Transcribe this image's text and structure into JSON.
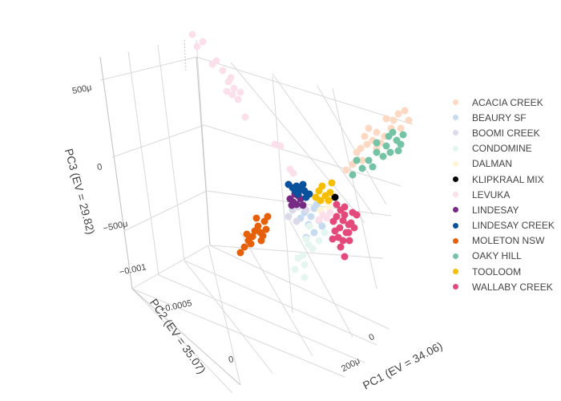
{
  "chart_data": {
    "type": "scatter",
    "xlabel": "PC1 (EV = 34.06)",
    "ylabel": "PC2 (EV = 35.07)",
    "zlabel": "PC3 (EV = 29.82)",
    "x_ticks": [
      "0",
      "200μ"
    ],
    "y_ticks": [
      "−0.001",
      "−0.0005",
      "0"
    ],
    "z_ticks": [
      "500μ",
      "0",
      "−500μ"
    ],
    "legend_position": "right",
    "series": [
      {
        "name": "ACACIA CREEK",
        "color": "#fdd9c3",
        "points": [
          [
            491,
            150
          ],
          [
            497,
            142
          ],
          [
            505,
            138
          ],
          [
            510,
            150
          ],
          [
            488,
            160
          ],
          [
            470,
            165
          ],
          [
            465,
            175
          ],
          [
            458,
            180
          ],
          [
            450,
            185
          ],
          [
            455,
            170
          ],
          [
            475,
            178
          ],
          [
            480,
            170
          ],
          [
            445,
            190
          ],
          [
            440,
            205
          ],
          [
            460,
            160
          ],
          [
            500,
            160
          ],
          [
            482,
            148
          ],
          [
            470,
            185
          ],
          [
            452,
            200
          ],
          [
            432,
            212
          ]
        ]
      },
      {
        "name": "BEAURY SF",
        "color": "#c6dbef",
        "points": [
          [
            380,
            265
          ],
          [
            388,
            270
          ],
          [
            392,
            260
          ],
          [
            398,
            275
          ],
          [
            385,
            280
          ],
          [
            375,
            272
          ],
          [
            392,
            290
          ],
          [
            382,
            296
          ],
          [
            395,
            255
          ],
          [
            402,
            282
          ]
        ]
      },
      {
        "name": "BOOMI CREEK",
        "color": "#dadaeb",
        "points": [
          [
            372,
            258
          ],
          [
            378,
            250
          ],
          [
            365,
            262
          ],
          [
            382,
            262
          ],
          [
            360,
            270
          ],
          [
            370,
            276
          ]
        ]
      },
      {
        "name": "CONDOMINE",
        "color": "#e5f5f0",
        "points": [
          [
            385,
            305
          ],
          [
            378,
            318
          ],
          [
            380,
            330
          ],
          [
            372,
            322
          ],
          [
            368,
            336
          ],
          [
            380,
            346
          ],
          [
            390,
            310
          ],
          [
            398,
            300
          ],
          [
            405,
            290
          ],
          [
            386,
            282
          ],
          [
            382,
            298
          ]
        ]
      },
      {
        "name": "DALMAN",
        "color": "#fff5d6",
        "points": [
          [
            405,
            250
          ],
          [
            410,
            258
          ],
          [
            400,
            262
          ],
          [
            415,
            246
          ],
          [
            396,
            244
          ]
        ]
      },
      {
        "name": "KLIPKRAAL MIX",
        "color": "#000000",
        "points": [
          [
            418,
            246
          ]
        ]
      },
      {
        "name": "LEVUKA",
        "color": "#fbe0ec",
        "points": [
          [
            240,
            43
          ],
          [
            253,
            52
          ],
          [
            246,
            58
          ],
          [
            265,
            80
          ],
          [
            270,
            76
          ],
          [
            285,
            102
          ],
          [
            292,
            110
          ],
          [
            300,
            115
          ],
          [
            290,
            118
          ],
          [
            283,
            114
          ],
          [
            278,
            88
          ],
          [
            288,
            97
          ],
          [
            297,
            124
          ],
          [
            306,
            146
          ],
          [
            343,
            180
          ],
          [
            350,
            182
          ],
          [
            362,
            211
          ],
          [
            366,
            216
          ],
          [
            403,
            268
          ],
          [
            408,
            272
          ],
          [
            412,
            265
          ],
          [
            398,
            274
          ],
          [
            416,
            276
          ],
          [
            420,
            270
          ]
        ]
      },
      {
        "name": "LINDESAY",
        "color": "#762a83",
        "points": [
          [
            362,
            248
          ],
          [
            366,
            252
          ],
          [
            370,
            255
          ],
          [
            375,
            248
          ],
          [
            364,
            256
          ],
          [
            372,
            244
          ],
          [
            378,
            256
          ],
          [
            368,
            242
          ]
        ]
      },
      {
        "name": "LINDESAY CREEK",
        "color": "#08519c",
        "points": [
          [
            360,
            230
          ],
          [
            365,
            234
          ],
          [
            368,
            238
          ],
          [
            372,
            242
          ],
          [
            375,
            236
          ],
          [
            378,
            230
          ],
          [
            382,
            246
          ],
          [
            386,
            242
          ],
          [
            370,
            232
          ],
          [
            380,
            238
          ]
        ]
      },
      {
        "name": "MOLETON NSW",
        "color": "#e6600a",
        "points": [
          [
            300,
            315
          ],
          [
            305,
            308
          ],
          [
            310,
            300
          ],
          [
            315,
            295
          ],
          [
            318,
            288
          ],
          [
            322,
            282
          ],
          [
            325,
            290
          ],
          [
            328,
            294
          ],
          [
            332,
            286
          ],
          [
            330,
            276
          ],
          [
            320,
            272
          ],
          [
            308,
            292
          ],
          [
            313,
            304
          ],
          [
            326,
            300
          ],
          [
            334,
            270
          ]
        ]
      },
      {
        "name": "OAKY HILL",
        "color": "#74c3a5",
        "points": [
          [
            490,
            165
          ],
          [
            495,
            175
          ],
          [
            500,
            180
          ],
          [
            485,
            170
          ],
          [
            470,
            190
          ],
          [
            478,
            195
          ],
          [
            460,
            200
          ],
          [
            452,
            210
          ],
          [
            440,
            218
          ],
          [
            445,
            200
          ],
          [
            465,
            208
          ],
          [
            497,
            188
          ],
          [
            503,
            168
          ],
          [
            482,
            182
          ],
          [
            470,
            178
          ],
          [
            487,
            190
          ]
        ]
      },
      {
        "name": "TOOLOOM",
        "color": "#f5bf00",
        "points": [
          [
            398,
            238
          ],
          [
            402,
            232
          ],
          [
            406,
            244
          ],
          [
            412,
            240
          ],
          [
            400,
            250
          ],
          [
            410,
            250
          ],
          [
            394,
            246
          ],
          [
            414,
            228
          ]
        ]
      },
      {
        "name": "WALLABY CREEK",
        "color": "#e34a7b",
        "points": [
          [
            420,
            255
          ],
          [
            425,
            262
          ],
          [
            430,
            268
          ],
          [
            428,
            275
          ],
          [
            435,
            280
          ],
          [
            432,
            290
          ],
          [
            428,
            300
          ],
          [
            422,
            296
          ],
          [
            418,
            288
          ],
          [
            415,
            298
          ],
          [
            425,
            308
          ],
          [
            430,
            320
          ],
          [
            440,
            265
          ],
          [
            438,
            278
          ],
          [
            445,
            268
          ],
          [
            442,
            284
          ],
          [
            436,
            300
          ],
          [
            424,
            284
          ],
          [
            416,
            276
          ],
          [
            430,
            258
          ],
          [
            435,
            290
          ],
          [
            420,
            270
          ]
        ]
      }
    ]
  }
}
